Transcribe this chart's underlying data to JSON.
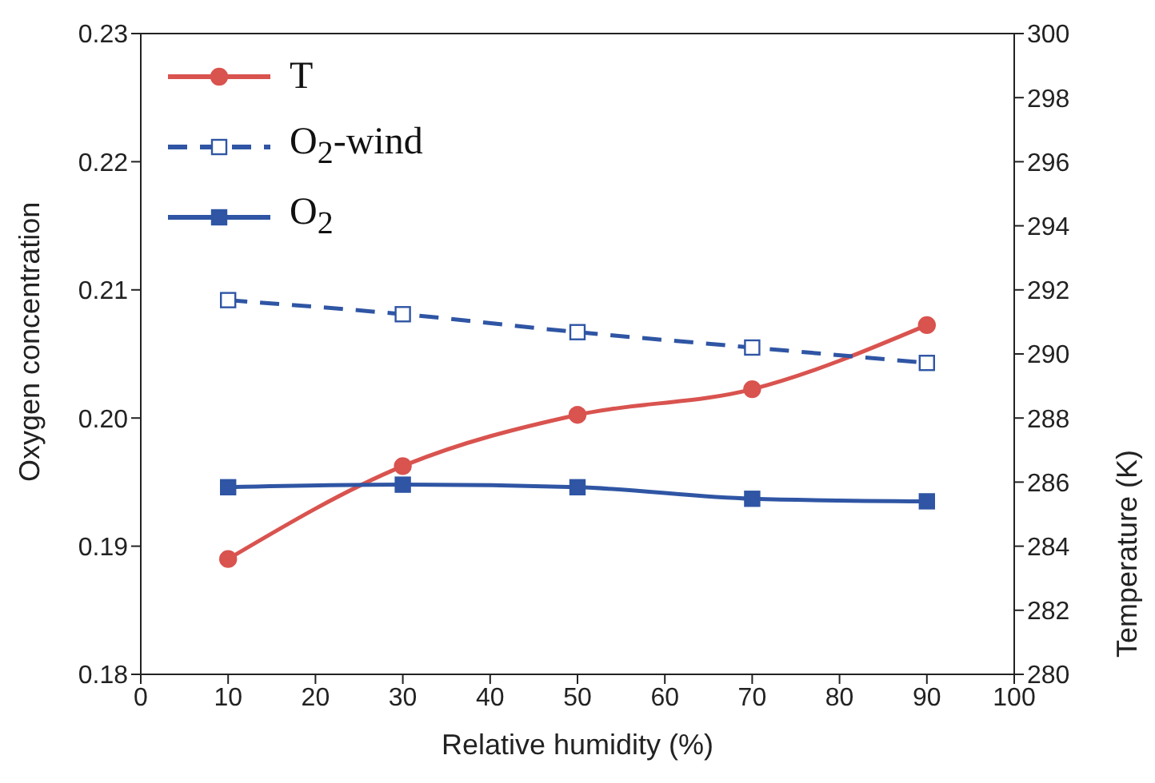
{
  "chart_data": {
    "type": "line",
    "xlabel": "Relative humidity (%)",
    "ylabel": "Oxygen concentration",
    "y2label": "Temperature (K)",
    "x": [
      10,
      30,
      50,
      70,
      90
    ],
    "series": [
      {
        "name": "T",
        "color": "#d9534f",
        "axis": "y2",
        "marker": "circle",
        "line_style": "solid",
        "values": [
          283.6,
          286.5,
          288.1,
          288.9,
          290.9
        ]
      },
      {
        "name": "O$_{2}$-wind",
        "color": "#2f55a4",
        "marker": "square",
        "line_style": "dashed",
        "values": [
          0.2092,
          0.2081,
          0.2067,
          0.2055,
          0.2043
        ]
      },
      {
        "name": "O$_{2}$",
        "color": "#2f55a4",
        "marker": "square",
        "line_style": "solid",
        "values": [
          0.1946,
          0.1948,
          0.1946,
          0.1937,
          0.1935
        ]
      }
    ],
    "xlim": [
      0,
      100
    ],
    "xticks": [
      0,
      10,
      20,
      30,
      40,
      50,
      60,
      70,
      80,
      90,
      100
    ],
    "ylim": [
      0.18,
      0.23
    ],
    "yticks": [
      {
        "value": 0.18,
        "label": "0.18"
      },
      {
        "value": 0.19,
        "label": "0.19"
      },
      {
        "value": 0.2,
        "label": "0.20"
      },
      {
        "value": 0.21,
        "label": "0.21"
      },
      {
        "value": 0.22,
        "label": "0.22"
      },
      {
        "value": 0.23,
        "label": "0.23"
      }
    ],
    "y2lim": [
      280,
      300
    ],
    "y2ticks": [
      280,
      282,
      284,
      286,
      288,
      290,
      292,
      294,
      296,
      298,
      300
    ],
    "grid": false,
    "legend": "top left"
  }
}
